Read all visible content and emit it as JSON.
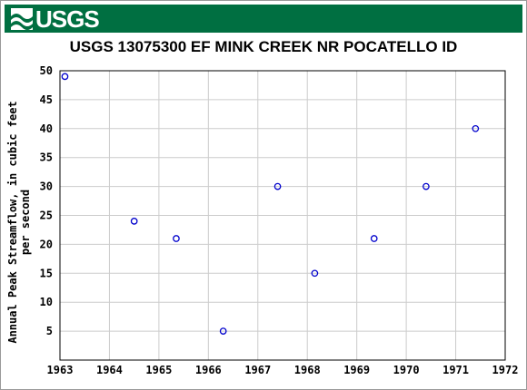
{
  "header": {
    "logo_text": "USGS",
    "banner_color": "#006f41"
  },
  "chart_data": {
    "type": "scatter",
    "title": "USGS 13075300 EF MINK CREEK NR POCATELLO ID",
    "xlabel": "",
    "ylabel_line1": "Annual Peak Streamflow, in cubic feet",
    "ylabel_line2": "per second",
    "xlim": [
      1963,
      1972
    ],
    "ylim": [
      0,
      50
    ],
    "x_ticks": [
      "1963",
      "1964",
      "1965",
      "1966",
      "1967",
      "1968",
      "1969",
      "1970",
      "1971",
      "1972"
    ],
    "y_ticks": [
      "5",
      "10",
      "15",
      "20",
      "25",
      "30",
      "35",
      "40",
      "45",
      "50"
    ],
    "grid": true,
    "marker_color": "#0000cc",
    "points": [
      {
        "x": 1963.1,
        "y": 49
      },
      {
        "x": 1964.5,
        "y": 24
      },
      {
        "x": 1965.35,
        "y": 21
      },
      {
        "x": 1966.3,
        "y": 5
      },
      {
        "x": 1967.4,
        "y": 30
      },
      {
        "x": 1968.15,
        "y": 15
      },
      {
        "x": 1969.35,
        "y": 21
      },
      {
        "x": 1970.4,
        "y": 30
      },
      {
        "x": 1971.4,
        "y": 40
      }
    ]
  }
}
